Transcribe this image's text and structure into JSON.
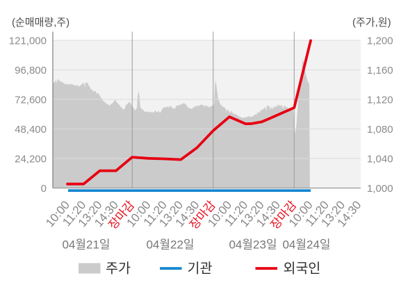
{
  "axis_left": {
    "title": "(순매매량,주)",
    "ticks": [
      "121,000",
      "96,800",
      "72,600",
      "48,400",
      "24,200",
      "0"
    ]
  },
  "axis_right": {
    "title": "(주가,원)",
    "ticks": [
      "1,200",
      "1,160",
      "1,120",
      "1,080",
      "1,040",
      "1,000"
    ]
  },
  "x_axis": {
    "labels": [
      {
        "t": "10:00",
        "red": false
      },
      {
        "t": "11:20",
        "red": false
      },
      {
        "t": "13:20",
        "red": false
      },
      {
        "t": "14:30",
        "red": false
      },
      {
        "t": "장마감",
        "red": true
      },
      {
        "t": "10:00",
        "red": false
      },
      {
        "t": "11:20",
        "red": false
      },
      {
        "t": "13:20",
        "red": false
      },
      {
        "t": "14:30",
        "red": false
      },
      {
        "t": "장마감",
        "red": true
      },
      {
        "t": "10:00",
        "red": false
      },
      {
        "t": "11:20",
        "red": false
      },
      {
        "t": "13:20",
        "red": false
      },
      {
        "t": "14:30",
        "red": false
      },
      {
        "t": "장마감",
        "red": true
      },
      {
        "t": "10:00",
        "red": false
      },
      {
        "t": "11:20",
        "red": false
      },
      {
        "t": "13:20",
        "red": false
      },
      {
        "t": "14:30",
        "red": false
      }
    ],
    "dates": [
      "04월21일",
      "04월22일",
      "04월23일",
      "04월24일"
    ]
  },
  "legend": [
    {
      "label": "주가",
      "type": "area",
      "color": "#cccccc"
    },
    {
      "label": "기관",
      "type": "line",
      "color": "#1787d0"
    },
    {
      "label": "외국인",
      "type": "line",
      "color": "#e60012"
    }
  ],
  "chart_data": {
    "type": "mixed",
    "x_unit": "tick-index, 5 ticks per day (10:00, 11:20, 13:20, 14:30, 장마감), 4 days 04/21-04/24",
    "left_axis": {
      "label": "순매매량(주)",
      "range": [
        0,
        121000
      ]
    },
    "right_axis": {
      "label": "주가(원)",
      "range": [
        1000,
        1200
      ]
    },
    "series": [
      {
        "name": "주가",
        "type": "area",
        "axis": "right",
        "color": "#cbcbcb",
        "points": [
          [
            -0.9,
            1143
          ],
          [
            -0.73,
            1146
          ],
          [
            -0.6,
            1148
          ],
          [
            -0.47,
            1146
          ],
          [
            -0.34,
            1144
          ],
          [
            -0.17,
            1142
          ],
          [
            0.04,
            1141
          ],
          [
            0.3,
            1141
          ],
          [
            0.56,
            1139
          ],
          [
            0.73,
            1138
          ],
          [
            0.9,
            1141
          ],
          [
            1.07,
            1143
          ],
          [
            1.24,
            1143
          ],
          [
            1.42,
            1136
          ],
          [
            1.59,
            1132
          ],
          [
            1.76,
            1131
          ],
          [
            1.93,
            1128
          ],
          [
            2.1,
            1122
          ],
          [
            2.27,
            1117
          ],
          [
            2.45,
            1114
          ],
          [
            2.62,
            1112
          ],
          [
            2.79,
            1116
          ],
          [
            2.96,
            1119
          ],
          [
            3.13,
            1115
          ],
          [
            3.3,
            1111
          ],
          [
            3.48,
            1107
          ],
          [
            3.65,
            1113
          ],
          [
            3.82,
            1118
          ],
          [
            3.99,
            1113
          ],
          [
            4.16,
            1107
          ],
          [
            4.29,
            1108
          ],
          [
            4.36,
            1133
          ],
          [
            4.42,
            1130
          ],
          [
            4.51,
            1109
          ],
          [
            4.68,
            1106
          ],
          [
            4.85,
            1104
          ],
          [
            5.06,
            1103
          ],
          [
            5.28,
            1104
          ],
          [
            5.49,
            1105
          ],
          [
            5.71,
            1103
          ],
          [
            5.92,
            1109
          ],
          [
            6.14,
            1111
          ],
          [
            6.35,
            1112
          ],
          [
            6.56,
            1108
          ],
          [
            6.78,
            1112
          ],
          [
            6.99,
            1113
          ],
          [
            7.21,
            1116
          ],
          [
            7.42,
            1111
          ],
          [
            7.64,
            1108
          ],
          [
            7.85,
            1111
          ],
          [
            8.07,
            1112
          ],
          [
            8.28,
            1114
          ],
          [
            8.5,
            1112
          ],
          [
            8.71,
            1111
          ],
          [
            8.92,
            1111
          ],
          [
            9.05,
            1112
          ],
          [
            9.12,
            1147
          ],
          [
            9.18,
            1143
          ],
          [
            9.31,
            1121
          ],
          [
            9.48,
            1114
          ],
          [
            9.65,
            1109
          ],
          [
            9.83,
            1107
          ],
          [
            10.0,
            1106
          ],
          [
            10.17,
            1104
          ],
          [
            10.34,
            1101
          ],
          [
            10.51,
            1098
          ],
          [
            10.69,
            1097
          ],
          [
            10.86,
            1095
          ],
          [
            11.03,
            1097
          ],
          [
            11.2,
            1098
          ],
          [
            11.37,
            1097
          ],
          [
            11.54,
            1100
          ],
          [
            11.71,
            1103
          ],
          [
            11.89,
            1105
          ],
          [
            12.06,
            1107
          ],
          [
            12.23,
            1110
          ],
          [
            12.4,
            1112
          ],
          [
            12.57,
            1109
          ],
          [
            12.74,
            1110
          ],
          [
            12.91,
            1112
          ],
          [
            13.09,
            1113
          ],
          [
            13.26,
            1112
          ],
          [
            13.43,
            1111
          ],
          [
            13.6,
            1110
          ],
          [
            13.77,
            1109
          ],
          [
            13.94,
            1108
          ],
          [
            14.03,
            1076
          ],
          [
            14.12,
            1082
          ],
          [
            14.2,
            1104
          ],
          [
            14.29,
            1135
          ],
          [
            14.4,
            1150
          ],
          [
            14.48,
            1160
          ],
          [
            14.53,
            1183
          ],
          [
            14.58,
            1170
          ],
          [
            14.66,
            1166
          ],
          [
            14.72,
            1155
          ],
          [
            14.8,
            1148
          ],
          [
            14.89,
            1143
          ],
          [
            14.97,
            1140
          ]
        ]
      },
      {
        "name": "기관",
        "type": "line",
        "axis": "left",
        "color": "#1787d0",
        "points": [
          [
            0.04,
            0
          ],
          [
            15.02,
            0
          ]
        ]
      },
      {
        "name": "외국인",
        "type": "line",
        "axis": "left",
        "color": "#e60012",
        "points": [
          [
            0,
            3300
          ],
          [
            1,
            3300
          ],
          [
            2,
            14200
          ],
          [
            3,
            14200
          ],
          [
            4,
            25300
          ],
          [
            5,
            24300
          ],
          [
            6,
            23900
          ],
          [
            7,
            23300
          ],
          [
            8,
            33000
          ],
          [
            9,
            47000
          ],
          [
            10,
            58300
          ],
          [
            11,
            52600
          ],
          [
            11.4,
            52800
          ],
          [
            12,
            54200
          ],
          [
            13,
            60000
          ],
          [
            14,
            65800
          ],
          [
            15.02,
            120800
          ]
        ]
      }
    ]
  }
}
